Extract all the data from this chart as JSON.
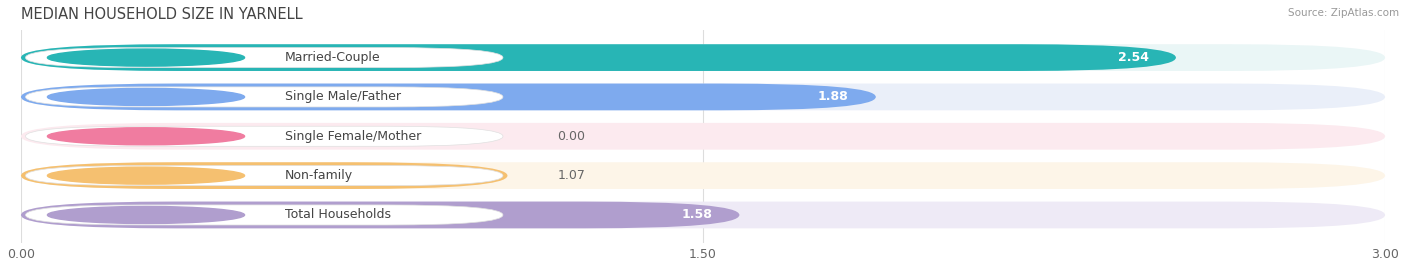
{
  "title": "MEDIAN HOUSEHOLD SIZE IN YARNELL",
  "source": "Source: ZipAtlas.com",
  "categories": [
    "Married-Couple",
    "Single Male/Father",
    "Single Female/Mother",
    "Non-family",
    "Total Households"
  ],
  "values": [
    2.54,
    1.88,
    0.0,
    1.07,
    1.58
  ],
  "bar_colors": [
    "#28b5b5",
    "#7eaaee",
    "#f07ca0",
    "#f5c070",
    "#b09ece"
  ],
  "bg_colors": [
    "#eaf6f6",
    "#eaeff9",
    "#fceaef",
    "#fdf5e8",
    "#eeeaf6"
  ],
  "value_labels": [
    "2.54",
    "1.88",
    "0.00",
    "1.07",
    "1.58"
  ],
  "xlim": [
    0,
    3.0
  ],
  "xticks": [
    0.0,
    1.5,
    3.0
  ],
  "xticklabels": [
    "0.00",
    "1.50",
    "3.00"
  ],
  "title_fontsize": 10.5,
  "label_fontsize": 9,
  "value_fontsize": 9,
  "background_color": "#ffffff"
}
